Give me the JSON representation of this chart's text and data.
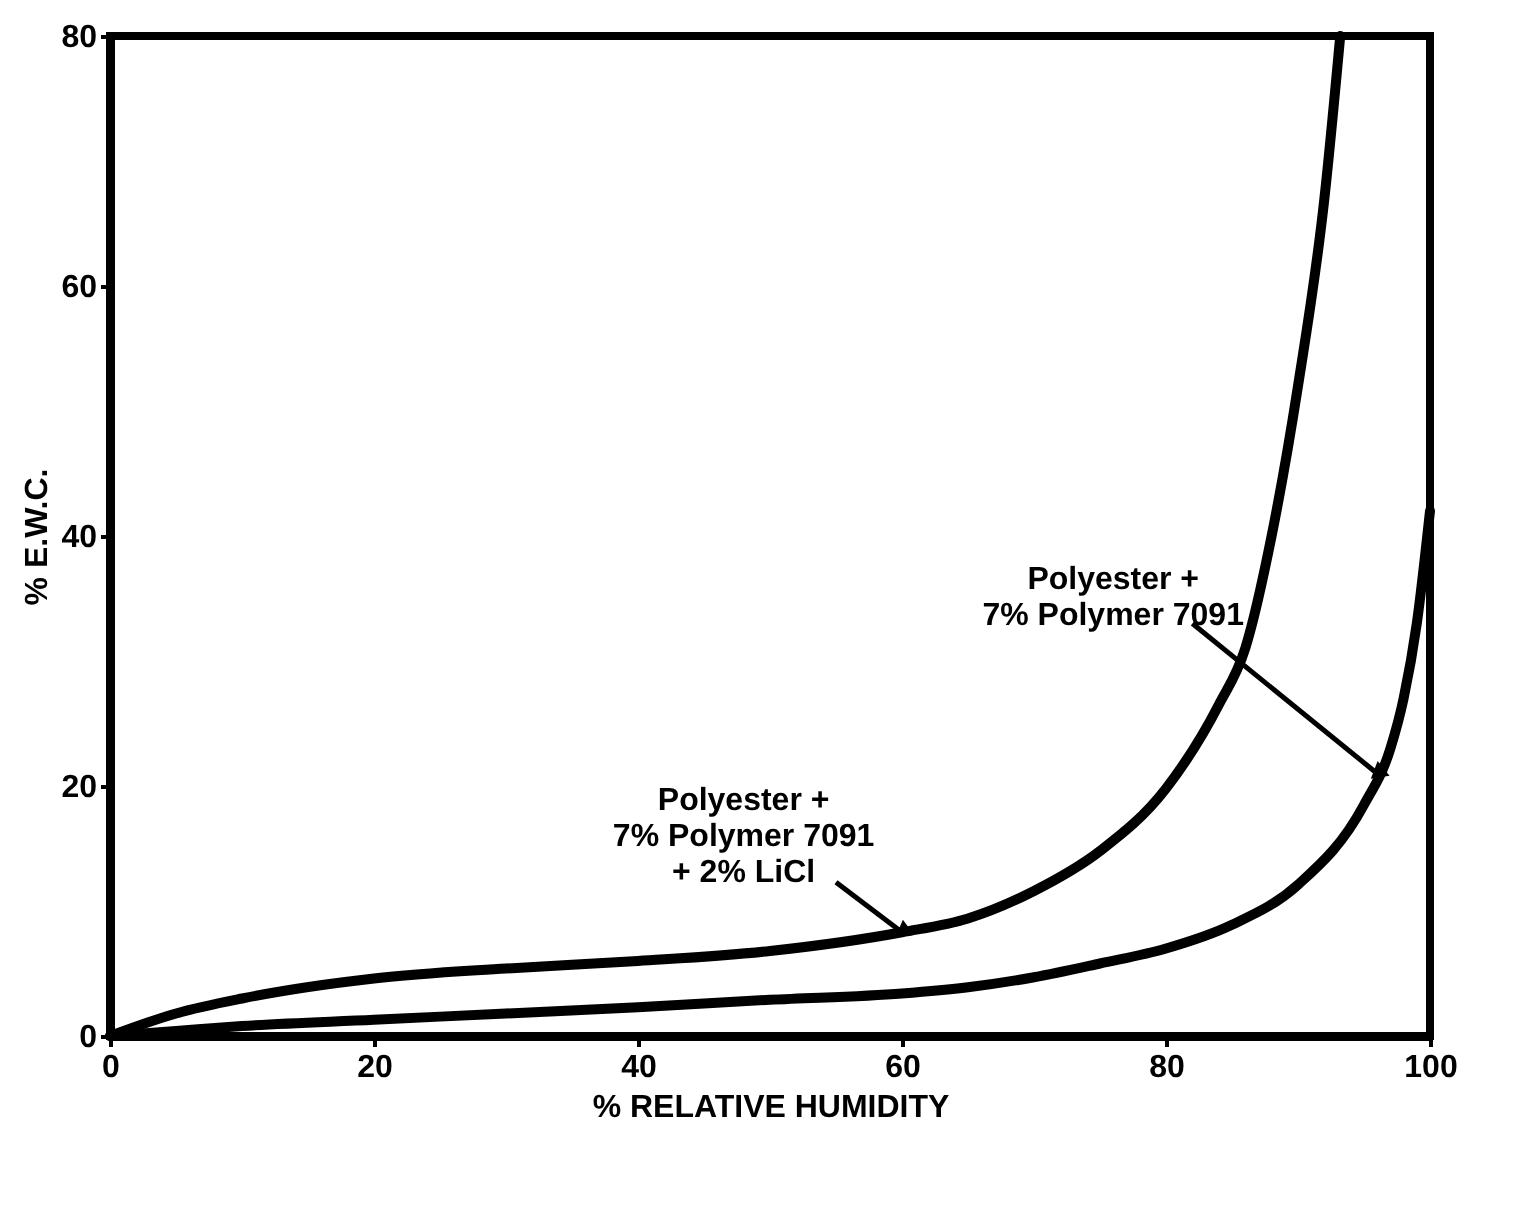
{
  "chart_data": {
    "type": "line",
    "xlabel": "% RELATIVE  HUMIDITY",
    "ylabel": "% E.W.C.",
    "xlim": [
      0,
      100
    ],
    "ylim": [
      0,
      80
    ],
    "xticks": [
      0,
      20,
      40,
      60,
      80,
      100
    ],
    "yticks": [
      0,
      20,
      40,
      60,
      80
    ],
    "grid": false,
    "marker": "none",
    "line_style": "solid",
    "series": [
      {
        "color": "#000000",
        "x": [
          0,
          5,
          10,
          20,
          30,
          40,
          50,
          60,
          65,
          70,
          75,
          80,
          84,
          86,
          88,
          90,
          92,
          93.2
        ],
        "values": [
          0,
          1.8,
          3.0,
          4.6,
          5.4,
          6.0,
          6.8,
          8.3,
          9.4,
          11.6,
          14.8,
          19.8,
          26.5,
          31,
          40,
          52,
          67,
          80
        ]
      },
      {
        "color": "#000000",
        "x": [
          0,
          5,
          10,
          20,
          30,
          40,
          50,
          60,
          65,
          70,
          75,
          80,
          85,
          90,
          95,
          97,
          98,
          99,
          100
        ],
        "values": [
          0,
          0.4,
          0.8,
          1.3,
          1.8,
          2.3,
          2.9,
          3.4,
          3.9,
          4.7,
          5.8,
          7.0,
          8.9,
          12.1,
          18.5,
          23,
          27,
          33,
          42
        ]
      }
    ],
    "annotations": [
      {
        "text": "Polyester +\n7% Polymer 7091\n+ 2% LiCl",
        "x": 60,
        "y": 8.3
      },
      {
        "text": "Polyester +\n7% Polymer 7091",
        "x": 96,
        "y": 21
      }
    ]
  }
}
